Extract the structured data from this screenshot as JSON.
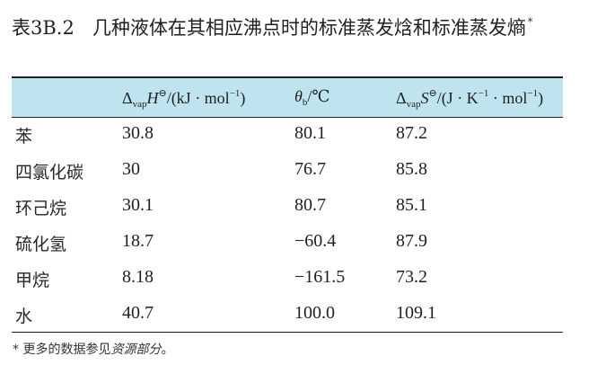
{
  "caption": {
    "label": "表3B.2",
    "title": "几种液体在其相应沸点时的标准蒸发焓和标准蒸发熵",
    "marker": "*"
  },
  "table": {
    "header": {
      "col1": {
        "delta": "Δ",
        "sub": "vap",
        "symbol": "H",
        "sup": "⊖",
        "unit_pre": "/(kJ · mol",
        "unit_exp": "−1",
        "unit_post": ")"
      },
      "col2": {
        "symbol": "θ",
        "sub": "b",
        "unit": "/℃"
      },
      "col3": {
        "delta": "Δ",
        "sub": "vap",
        "symbol": "S",
        "sup": "⊖",
        "unit_pre": "/(J · K",
        "unit_exp1": "−1",
        "unit_mid": " · mol",
        "unit_exp2": "−1",
        "unit_post": ")"
      }
    },
    "rows": [
      {
        "name": "苯",
        "h": "30.8",
        "t": "80.1",
        "s": "87.2"
      },
      {
        "name": "四氯化碳",
        "h": "30",
        "t": "76.7",
        "s": "85.8"
      },
      {
        "name": "环己烷",
        "h": "30.1",
        "t": "80.7",
        "s": "85.1"
      },
      {
        "name": "硫化氢",
        "h": "18.7",
        "t": "−60.4",
        "s": "87.9"
      },
      {
        "name": "甲烷",
        "h": "8.18",
        "t": "−161.5",
        "s": "73.2"
      },
      {
        "name": "水",
        "h": "40.7",
        "t": "100.0",
        "s": "109.1"
      }
    ]
  },
  "footnote": {
    "marker": "*",
    "text_pre": " 更多的数据参见",
    "text_em": "资源部分",
    "text_post": "。"
  }
}
